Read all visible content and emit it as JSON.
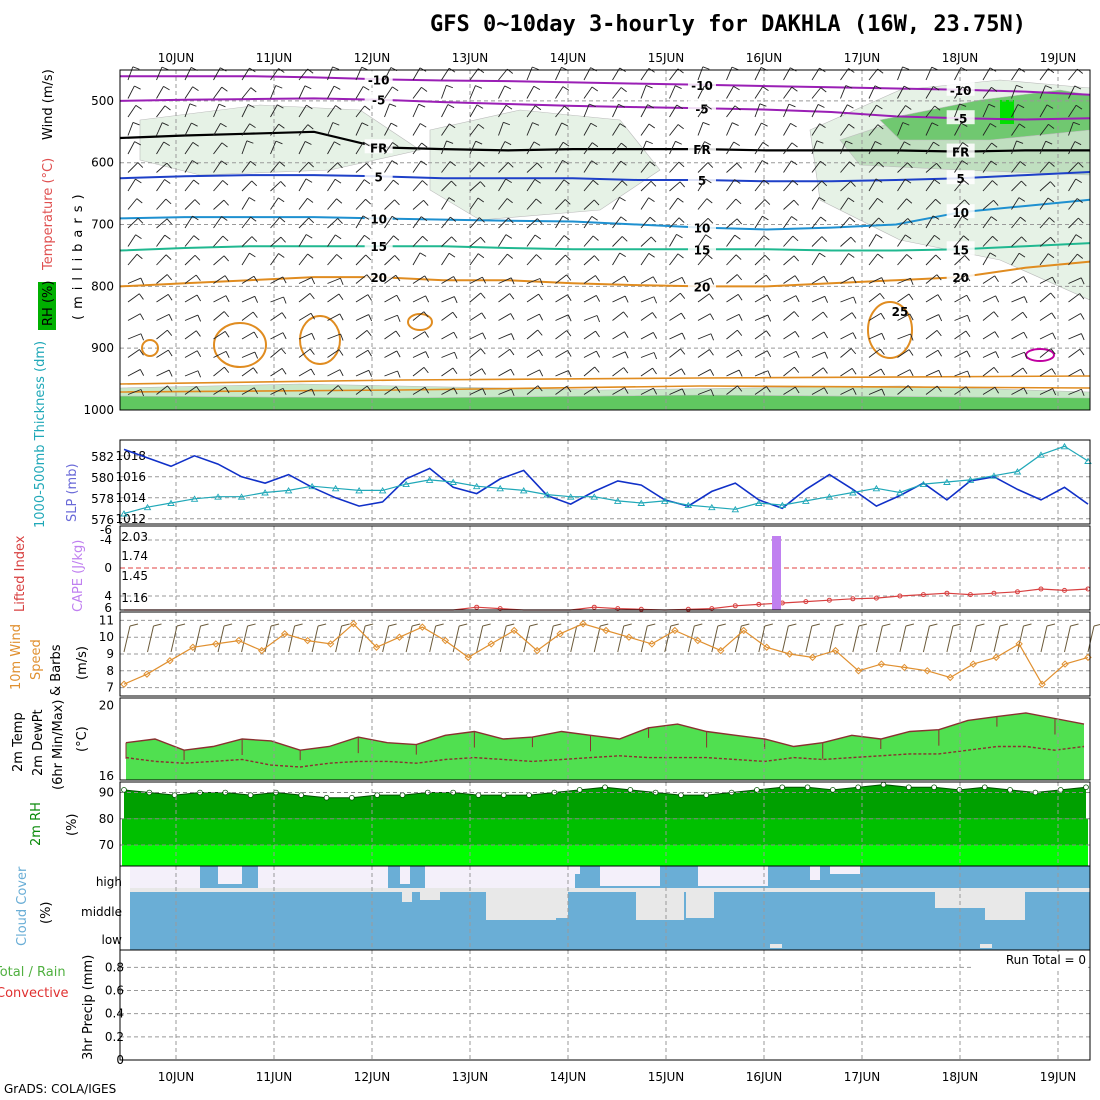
{
  "title": "GFS 0~10day 3-hourly for DAKHLA (16W, 23.75N)",
  "credit": "GrADS: COLA/IGES",
  "run_total_label": "Run Total = 0",
  "chart_data": [
    {
      "panel": "upper-air",
      "type": "heatmap",
      "x_dates": [
        "10JUN",
        "11JUN",
        "12JUN",
        "13JUN",
        "14JUN",
        "15JUN",
        "16JUN",
        "17JUN",
        "18JUN",
        "19JUN"
      ],
      "ylabel_parts": [
        "RH (%)",
        "Temperature (°C)",
        "Wind (m/s)"
      ],
      "ylabel_units": "(millibars)",
      "y_ticks": [
        500,
        600,
        700,
        800,
        900,
        1000
      ],
      "ylim": [
        1000,
        450
      ],
      "temperature_contours": [
        {
          "label": "-10",
          "color": "#9a1fb5",
          "levels": [
            460,
            460,
            460,
            462,
            465,
            467,
            468,
            470,
            472,
            474,
            476,
            478,
            480,
            482,
            485,
            490
          ]
        },
        {
          "label": "-5",
          "color": "#9a1fb5",
          "levels": [
            500,
            498,
            497,
            496,
            498,
            502,
            505,
            508,
            510,
            512,
            514,
            518,
            525,
            528,
            530,
            528
          ]
        },
        {
          "label": "FR",
          "color": "#000000",
          "levels": [
            560,
            556,
            553,
            550,
            575,
            578,
            580,
            578,
            578,
            578,
            580,
            580,
            580,
            582,
            580,
            580
          ]
        },
        {
          "label": "5",
          "color": "#1e40c8",
          "levels": [
            625,
            622,
            620,
            620,
            622,
            625,
            625,
            625,
            628,
            628,
            630,
            630,
            628,
            625,
            620,
            615
          ]
        },
        {
          "label": "10",
          "color": "#1e90d0",
          "levels": [
            690,
            688,
            688,
            688,
            690,
            692,
            694,
            695,
            700,
            705,
            708,
            705,
            700,
            680,
            670,
            660
          ]
        },
        {
          "label": "15",
          "color": "#20b890",
          "levels": [
            742,
            738,
            735,
            735,
            735,
            735,
            738,
            740,
            740,
            740,
            740,
            742,
            742,
            740,
            735,
            730
          ]
        },
        {
          "label": "20",
          "color": "#e08c20",
          "levels": [
            800,
            795,
            790,
            785,
            785,
            790,
            790,
            795,
            798,
            800,
            800,
            795,
            790,
            785,
            770,
            760
          ]
        },
        {
          "label": "25",
          "color": "#e08c20",
          "levels": []
        }
      ],
      "rh_shading_levels": [
        10,
        30,
        50,
        70,
        90
      ]
    },
    {
      "panel": "sfc-pressure",
      "type": "line",
      "series": [
        {
          "name": "SLP (mb)",
          "color": "#1030c8",
          "axis": "right-inner",
          "values": [
            1018.6,
            1017.8,
            1017.0,
            1018.0,
            1017.2,
            1016.0,
            1015.4,
            1016.2,
            1015.0,
            1014.0,
            1013.2,
            1013.6,
            1015.8,
            1016.8,
            1015.0,
            1014.4,
            1015.8,
            1016.6,
            1014.2,
            1013.4,
            1014.6,
            1015.6,
            1015.2,
            1013.8,
            1013.2,
            1014.6,
            1015.4,
            1013.8,
            1013.0,
            1014.8,
            1016.2,
            1014.8,
            1013.2,
            1014.2,
            1015.4,
            1013.8,
            1015.6,
            1016.0,
            1014.8,
            1013.8,
            1015.0,
            1013.4
          ]
        },
        {
          "name": "1000-500mb Thickness (dm)",
          "color": "#20a8b8",
          "axis": "left",
          "values": [
            576.6,
            577.2,
            577.6,
            578.0,
            578.2,
            578.2,
            578.6,
            578.8,
            579.2,
            579.0,
            578.8,
            578.8,
            579.4,
            579.8,
            579.6,
            579.2,
            579.0,
            578.8,
            578.4,
            578.2,
            578.2,
            577.8,
            577.6,
            577.8,
            577.4,
            577.2,
            577.0,
            577.6,
            577.4,
            577.8,
            578.2,
            578.6,
            579.0,
            578.6,
            579.4,
            579.6,
            579.8,
            580.2,
            580.6,
            582.2,
            583.0,
            581.6
          ]
        }
      ],
      "left_ticks": [
        576,
        578,
        580,
        582
      ],
      "right_ticks": [
        1012,
        1014,
        1016,
        1018
      ]
    },
    {
      "panel": "stability",
      "type": "bar",
      "ylabel_left": "Lifted Index",
      "ylabel_right": "CAPE (J/kg)",
      "left_ticks": [
        "-4",
        "0",
        "4"
      ],
      "left_ticks_bottom": "6",
      "left_ticks_top": "-6",
      "right_ticks": [
        "2.03",
        "1.74",
        "1.45",
        "1.16"
      ],
      "cape_bars": [
        {
          "date": "16JUN",
          "value": 2.03
        }
      ],
      "lifted_index": [
        6.0,
        6.0,
        6.0,
        6.0,
        6.0,
        6.0,
        6.0,
        6.0,
        6.0,
        6.0,
        6.0,
        6.0,
        6.0,
        6.0,
        6.0,
        5.6,
        5.8,
        6.0,
        6.0,
        6.0,
        5.6,
        5.8,
        5.9,
        6.0,
        5.9,
        5.8,
        5.4,
        5.2,
        5.0,
        4.8,
        4.6,
        4.4,
        4.3,
        4.0,
        3.8,
        3.6,
        3.8,
        3.6,
        3.4,
        3.0,
        3.2,
        3.0
      ]
    },
    {
      "panel": "wind10m",
      "type": "line",
      "ylabel": [
        "10m Wind",
        "Speed",
        "& Barbs"
      ],
      "units": "(m/s)",
      "y_ticks": [
        7,
        8,
        9,
        10,
        11
      ],
      "ylim": [
        6.5,
        11.5
      ],
      "speed": [
        7.2,
        7.8,
        8.6,
        9.4,
        9.6,
        9.8,
        9.2,
        10.2,
        9.8,
        9.6,
        10.8,
        9.4,
        10.0,
        10.6,
        9.8,
        8.8,
        9.6,
        10.4,
        9.2,
        10.2,
        10.8,
        10.4,
        10.0,
        9.6,
        10.4,
        9.8,
        9.2,
        10.4,
        9.4,
        9.0,
        8.8,
        9.2,
        8.0,
        8.4,
        8.2,
        8.0,
        7.6,
        8.4,
        8.8,
        9.6,
        7.2,
        8.4,
        8.8
      ]
    },
    {
      "panel": "temp2m",
      "type": "area",
      "ylabel": [
        "2m Temp",
        "2m DewPt",
        "(6hr Min/Max)"
      ],
      "units": "(°C)",
      "y_ticks": [
        16,
        20
      ],
      "ylim": [
        16,
        20
      ],
      "temp": [
        18.0,
        18.2,
        17.6,
        17.8,
        18.2,
        18.1,
        17.6,
        17.8,
        18.3,
        18.0,
        17.9,
        18.4,
        18.6,
        18.2,
        18.3,
        18.6,
        18.4,
        18.2,
        18.8,
        19.0,
        18.6,
        18.4,
        18.2,
        17.8,
        18.0,
        18.4,
        18.2,
        18.6,
        18.7,
        19.2,
        19.4,
        19.6,
        19.3,
        19.0
      ],
      "dewpt": [
        17.2,
        17.0,
        16.9,
        17.0,
        17.1,
        16.8,
        16.7,
        16.9,
        17.0,
        17.0,
        16.9,
        17.1,
        17.2,
        17.1,
        17.0,
        17.1,
        17.2,
        17.3,
        17.2,
        17.2,
        17.2,
        17.1,
        17.0,
        17.2,
        17.1,
        17.2,
        17.3,
        17.4,
        17.4,
        17.6,
        17.8,
        17.8,
        17.6,
        17.8
      ]
    },
    {
      "panel": "rh2m",
      "type": "area",
      "ylabel": "2m RH",
      "units": "(%)",
      "y_ticks": [
        70,
        80,
        90
      ],
      "ylim": [
        62,
        94
      ],
      "values": [
        91,
        90,
        89,
        90,
        90,
        89,
        90,
        89,
        88,
        88,
        89,
        89,
        90,
        90,
        89,
        89,
        89,
        90,
        91,
        92,
        91,
        90,
        89,
        89,
        90,
        91,
        92,
        92,
        91,
        92,
        93,
        92,
        92,
        91,
        92,
        91,
        90,
        91,
        92
      ]
    },
    {
      "panel": "cloud",
      "type": "area",
      "ylabel": "Cloud Cover",
      "units": "(%)",
      "levels": [
        "high",
        "middle",
        "low"
      ]
    },
    {
      "panel": "precip",
      "type": "bar",
      "ylabel": [
        "Total / Rain",
        "Convective"
      ],
      "ylabel_axis": "3hr Precip (mm)",
      "y_ticks": [
        "0",
        "0.2",
        "0.4",
        "0.6",
        "0.8"
      ],
      "ylim": [
        0,
        0.95
      ],
      "values": []
    }
  ],
  "colors": {
    "temp_label": "#e05050",
    "wind_label": "#000000",
    "rh_label": "#0a8a0a",
    "thickness": "#20a8b8",
    "slp": "#1030c8",
    "cape": "#c080f0",
    "lifted": "#d84040",
    "wind_speed": "#e09030",
    "temp_area": "#50e050",
    "rh_dark": "#00a000",
    "rh_mid": "#00c000",
    "rh_light": "#00ff00",
    "cloud": "#6aaed6",
    "cloud_bg": "#f4f0fa",
    "precip_label": "#50b040",
    "convective_label": "#e03030"
  }
}
